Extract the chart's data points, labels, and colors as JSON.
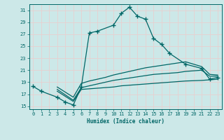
{
  "xlabel": "Humidex (Indice chaleur)",
  "bg_color": "#cce8e8",
  "grid_color": "#e8d0d0",
  "line_color": "#006666",
  "xlim": [
    -0.5,
    23.5
  ],
  "ylim": [
    14.5,
    32.0
  ],
  "yticks": [
    15,
    17,
    19,
    21,
    23,
    25,
    27,
    29,
    31
  ],
  "xticks": [
    0,
    1,
    2,
    3,
    4,
    5,
    6,
    7,
    8,
    9,
    10,
    11,
    12,
    13,
    14,
    15,
    16,
    17,
    18,
    19,
    20,
    21,
    22,
    23
  ],
  "main_x": [
    0,
    1,
    3,
    4,
    5,
    6,
    7,
    8,
    10,
    11,
    12,
    13,
    14,
    15,
    16,
    17,
    19,
    21,
    22,
    23
  ],
  "main_y": [
    18.3,
    17.5,
    16.5,
    15.7,
    15.2,
    18.2,
    27.2,
    27.5,
    28.5,
    30.5,
    31.5,
    30.0,
    29.5,
    26.3,
    25.3,
    23.8,
    22.0,
    21.3,
    19.5,
    19.8
  ],
  "t1_x": [
    3,
    5,
    6,
    7,
    8,
    9,
    10,
    11,
    12,
    13,
    14,
    15,
    16,
    17,
    18,
    19,
    21,
    22,
    23
  ],
  "t1_y": [
    17.5,
    15.8,
    17.8,
    17.9,
    18.0,
    18.1,
    18.2,
    18.4,
    18.5,
    18.6,
    18.7,
    18.8,
    18.9,
    19.0,
    19.1,
    19.2,
    19.3,
    19.4,
    19.5
  ],
  "t2_x": [
    3,
    5,
    6,
    7,
    8,
    9,
    10,
    11,
    12,
    13,
    14,
    15,
    16,
    17,
    18,
    19,
    21,
    22,
    23
  ],
  "t2_y": [
    17.8,
    16.0,
    18.1,
    18.4,
    18.7,
    19.0,
    19.3,
    19.5,
    19.7,
    19.9,
    20.1,
    20.3,
    20.4,
    20.5,
    20.6,
    20.8,
    21.0,
    20.0,
    20.0
  ],
  "t3_x": [
    3,
    5,
    6,
    7,
    8,
    9,
    10,
    11,
    12,
    13,
    14,
    15,
    16,
    17,
    18,
    19,
    21,
    22,
    23
  ],
  "t3_y": [
    18.2,
    16.5,
    18.8,
    19.2,
    19.5,
    19.8,
    20.2,
    20.5,
    20.8,
    21.1,
    21.4,
    21.6,
    21.8,
    22.0,
    22.2,
    22.4,
    21.6,
    20.3,
    20.2
  ]
}
